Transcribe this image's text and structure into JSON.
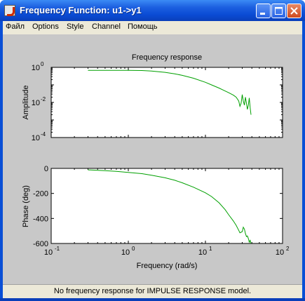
{
  "window": {
    "title": "Frequency Function: u1->y1",
    "menu": [
      "Файл",
      "Options",
      "Style",
      "Channel",
      "Помощь"
    ],
    "status": "No frequency response for IMPULSE RESPONSE model."
  },
  "colors": {
    "line": "#00a000",
    "axes_bg": "#ffffff",
    "figure_bg": "#c8c8c8"
  },
  "chart_data": [
    {
      "type": "line",
      "title": "Frequency response",
      "ylabel": "Amplitude",
      "xscale": "log",
      "yscale": "log",
      "xlim": [
        0.1,
        100
      ],
      "ylim": [
        0.0001,
        1
      ],
      "yticks": [
        {
          "value": 1,
          "base": "10",
          "exp": "0"
        },
        {
          "value": 0.01,
          "base": "10",
          "exp": "-2"
        },
        {
          "value": 0.0001,
          "base": "10",
          "exp": "-4"
        }
      ],
      "series": [
        {
          "x": [
            0.3,
            0.5,
            0.7,
            1.0,
            1.5,
            2.0,
            3.0,
            4.0,
            5.0,
            7.0,
            10.0,
            12.0,
            15.0,
            18.0,
            20.0,
            23.0,
            25.0,
            27.0,
            28.0,
            29.0,
            30.0,
            31.0,
            32.0,
            33.0,
            34.0,
            35.0,
            36.0,
            37.0,
            38.0,
            39.0
          ],
          "y": [
            0.68,
            0.68,
            0.68,
            0.68,
            0.66,
            0.62,
            0.52,
            0.43,
            0.35,
            0.24,
            0.14,
            0.1,
            0.066,
            0.045,
            0.036,
            0.026,
            0.02,
            0.012,
            0.006,
            0.009,
            0.028,
            0.012,
            0.007,
            0.02,
            0.009,
            0.004,
            0.007,
            0.018,
            0.005,
            0.002
          ]
        }
      ]
    },
    {
      "type": "line",
      "xlabel": "Frequency (rad/s)",
      "ylabel": "Phase (deg)",
      "xscale": "log",
      "xlim": [
        0.1,
        100
      ],
      "ylim": [
        -600,
        0
      ],
      "yticks": [
        0,
        -200,
        -400,
        -600
      ],
      "xticks": [
        {
          "value": 0.1,
          "base": "10",
          "exp": "-1"
        },
        {
          "value": 1,
          "base": "10",
          "exp": "0"
        },
        {
          "value": 10,
          "base": "10",
          "exp": "1"
        },
        {
          "value": 100,
          "base": "10",
          "exp": "2"
        }
      ],
      "series": [
        {
          "x": [
            0.3,
            0.5,
            0.7,
            1.0,
            1.5,
            2.0,
            3.0,
            4.0,
            5.0,
            7.0,
            10.0,
            12.0,
            15.0,
            18.0,
            20.0,
            23.0,
            25.0,
            27.0,
            28.0,
            30.0,
            31.0,
            32.0,
            33.0,
            34.0,
            35.0,
            36.0,
            37.0,
            38.0,
            39.0
          ],
          "y": [
            -12,
            -18,
            -24,
            -32,
            -42,
            -55,
            -75,
            -95,
            -115,
            -150,
            -195,
            -225,
            -275,
            -330,
            -370,
            -420,
            -455,
            -495,
            -515,
            -505,
            -470,
            -485,
            -520,
            -545,
            -540,
            -560,
            -590,
            -575,
            -600
          ]
        }
      ]
    }
  ]
}
